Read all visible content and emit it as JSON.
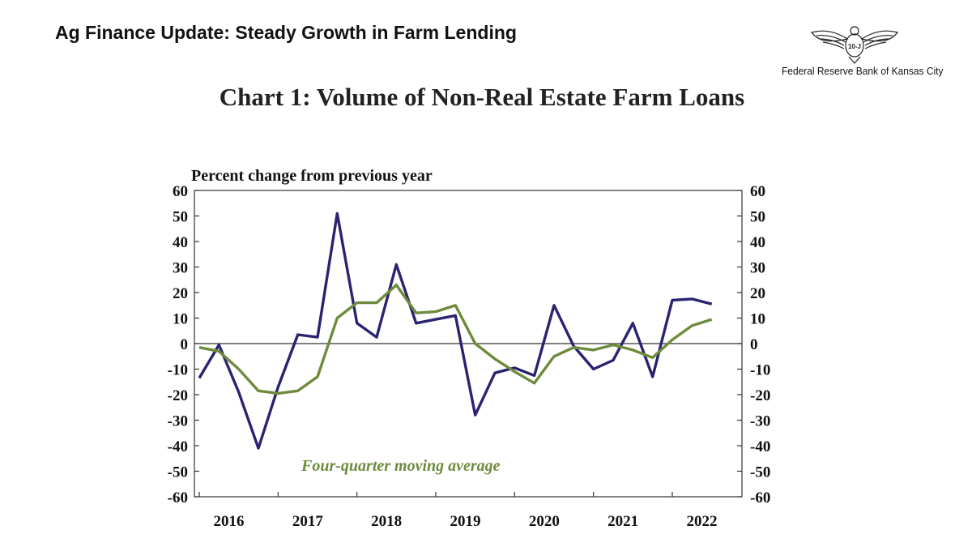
{
  "header": {
    "title": "Ag Finance Update: Steady Growth in Farm Lending",
    "logo_text": "Federal Reserve Bank of Kansas City",
    "logo_seal_text": "10-J"
  },
  "colors": {
    "quarterly_line": "#2a2370",
    "moving_average_line": "#6e8b3d",
    "text": "#111111"
  },
  "chart_data": {
    "type": "line",
    "title": "Chart 1: Volume of Non-Real Estate Farm Loans",
    "ylabel": "Percent change from previous year",
    "xlabel": "",
    "xlim": [
      2016,
      2022.75
    ],
    "ylim": [
      -60,
      60
    ],
    "yticks": [
      60,
      50,
      40,
      30,
      20,
      10,
      0,
      -10,
      -20,
      -30,
      -40,
      -50,
      -60
    ],
    "xticks": [
      "2016",
      "2017",
      "2018",
      "2019",
      "2020",
      "2021",
      "2022"
    ],
    "secondary_y_axis": true,
    "zero_line": true,
    "grid": false,
    "annotation": "Four-quarter moving average",
    "x": [
      2016.0,
      2016.25,
      2016.5,
      2016.75,
      2017.0,
      2017.25,
      2017.5,
      2017.75,
      2018.0,
      2018.25,
      2018.5,
      2018.75,
      2019.0,
      2019.25,
      2019.5,
      2019.75,
      2020.0,
      2020.25,
      2020.5,
      2020.75,
      2021.0,
      2021.25,
      2021.5,
      2021.75,
      2022.0,
      2022.25,
      2022.5
    ],
    "series": [
      {
        "values": [
          -13.5,
          -0.5,
          -19,
          -41,
          -17,
          3.5,
          2.5,
          51,
          8,
          2.5,
          31,
          8,
          9.5,
          11,
          -28,
          -11.5,
          -9.5,
          -12.5,
          15,
          -1,
          -10,
          -6.5,
          8,
          -13,
          17,
          17.5,
          15.5
        ]
      },
      {
        "name": "Four-quarter moving average",
        "values": [
          -1.5,
          -3,
          -10,
          -18.5,
          -19.5,
          -18.5,
          -13,
          10,
          16,
          16,
          23,
          12,
          12.5,
          15,
          0,
          -6,
          -11,
          -15.5,
          -5,
          -1.5,
          -2.5,
          -0.5,
          -2.5,
          -5.5,
          1.5,
          7,
          9.5
        ]
      }
    ]
  }
}
